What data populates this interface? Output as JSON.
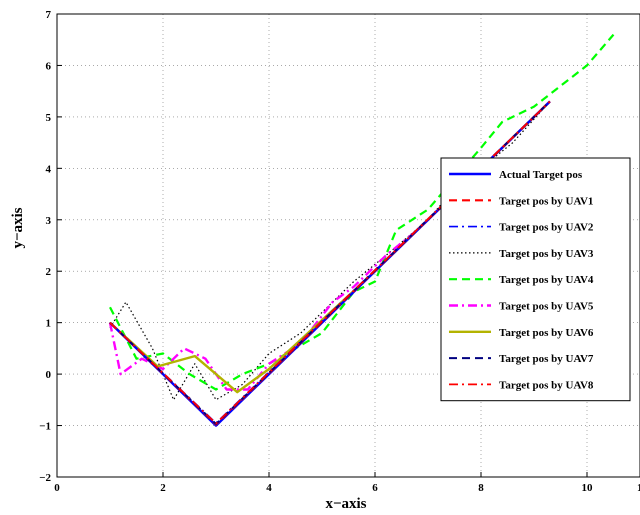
{
  "chart_data": {
    "type": "line",
    "title": "",
    "xlabel": "x−axis",
    "ylabel": "y−axis",
    "xlim": [
      0,
      11
    ],
    "ylim": [
      -2,
      7
    ],
    "xticks": [
      "0",
      "2",
      "4",
      "6",
      "8",
      "10"
    ],
    "yticks": [
      "−2",
      "−1",
      "0",
      "1",
      "2",
      "3",
      "4",
      "5",
      "6",
      "7"
    ],
    "grid": true,
    "legend_position": "right",
    "series": [
      {
        "name": "Actual Target pos",
        "color": "#0000ff",
        "dash": "solid",
        "width": 2.4,
        "points": [
          [
            1,
            1
          ],
          [
            3,
            -1
          ],
          [
            9.3,
            5.3
          ]
        ]
      },
      {
        "name": "Target pos by UAV1",
        "color": "#ff0000",
        "dash": "dashed",
        "width": 2.2,
        "points": [
          [
            1,
            1
          ],
          [
            3,
            -0.98
          ],
          [
            9.3,
            5.3
          ]
        ]
      },
      {
        "name": "Target pos by UAV2",
        "color": "#0000ff",
        "dash": "dashdot",
        "width": 1.6,
        "points": [
          [
            1,
            1
          ],
          [
            3,
            -0.95
          ],
          [
            9.3,
            5.3
          ]
        ]
      },
      {
        "name": "Target pos by UAV3",
        "color": "#000000",
        "dash": "dotted",
        "width": 1.2,
        "points": [
          [
            1,
            0.9
          ],
          [
            1.3,
            1.4
          ],
          [
            1.8,
            0.5
          ],
          [
            2.2,
            -0.5
          ],
          [
            2.6,
            0.2
          ],
          [
            3,
            -0.5
          ],
          [
            3.5,
            -0.2
          ],
          [
            4,
            0.4
          ],
          [
            4.6,
            0.8
          ],
          [
            5.2,
            1.4
          ],
          [
            5.6,
            1.8
          ],
          [
            6.2,
            2.3
          ],
          [
            7,
            3
          ],
          [
            7.5,
            3.6
          ],
          [
            8,
            4.0
          ],
          [
            8.6,
            4.5
          ],
          [
            9.3,
            5.3
          ]
        ]
      },
      {
        "name": "Target pos by UAV4",
        "color": "#00ff00",
        "dash": "dashed",
        "width": 2.2,
        "points": [
          [
            1,
            1.3
          ],
          [
            1.5,
            0.3
          ],
          [
            2,
            0.4
          ],
          [
            2.5,
            0.0
          ],
          [
            3,
            -0.3
          ],
          [
            3.5,
            0.0
          ],
          [
            4,
            0.2
          ],
          [
            5,
            0.8
          ],
          [
            5.6,
            1.6
          ],
          [
            6,
            1.8
          ],
          [
            6.4,
            2.8
          ],
          [
            7,
            3.2
          ],
          [
            7.5,
            3.8
          ],
          [
            8,
            4.4
          ],
          [
            8.4,
            4.9
          ],
          [
            9,
            5.2
          ],
          [
            9.5,
            5.6
          ],
          [
            10,
            6.0
          ],
          [
            10.5,
            6.6
          ]
        ]
      },
      {
        "name": "Target pos by UAV5",
        "color": "#ff00ff",
        "dash": "dashdot",
        "width": 2.4,
        "points": [
          [
            1,
            1.0
          ],
          [
            1.2,
            0.0
          ],
          [
            1.6,
            0.3
          ],
          [
            2,
            0.1
          ],
          [
            2.4,
            0.5
          ],
          [
            2.8,
            0.3
          ],
          [
            3.2,
            -0.3
          ],
          [
            3.6,
            -0.3
          ],
          [
            4,
            0.2
          ],
          [
            4.6,
            0.6
          ],
          [
            5.2,
            1.4
          ],
          [
            5.6,
            1.7
          ],
          [
            6.2,
            2.3
          ],
          [
            6.8,
            2.8
          ],
          [
            7.4,
            3.4
          ],
          [
            8,
            4.0
          ],
          [
            8.6,
            4.6
          ],
          [
            9.3,
            5.3
          ]
        ]
      },
      {
        "name": "Target pos by UAV6",
        "color": "#b3b300",
        "dash": "solid",
        "width": 2.4,
        "points": [
          [
            1,
            1
          ],
          [
            1.9,
            0.15
          ],
          [
            2.6,
            0.35
          ],
          [
            3.4,
            -0.35
          ],
          [
            4,
            0.1
          ],
          [
            6,
            2.0
          ],
          [
            7,
            3.0
          ],
          [
            8,
            4.0
          ],
          [
            9.3,
            5.3
          ]
        ]
      },
      {
        "name": "Target pos by UAV7",
        "color": "#000080",
        "dash": "dashed",
        "width": 2.0,
        "points": [
          [
            1,
            1
          ],
          [
            3,
            -0.97
          ],
          [
            9.3,
            5.3
          ]
        ]
      },
      {
        "name": "Target pos by UAV8",
        "color": "#ff0000",
        "dash": "dashdot",
        "width": 1.8,
        "points": [
          [
            1,
            1
          ],
          [
            3,
            -0.96
          ],
          [
            9.3,
            5.3
          ]
        ]
      }
    ]
  }
}
